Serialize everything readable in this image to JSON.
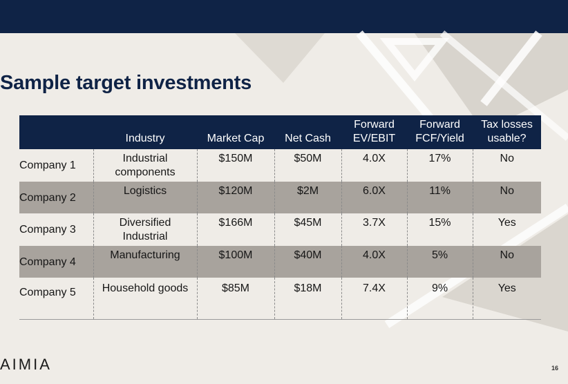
{
  "slide": {
    "title": "Sample target investments",
    "logo_text": "AIMIA",
    "page_number": "16"
  },
  "table": {
    "headers": [
      "",
      "Industry",
      "Market Cap",
      "Net Cash",
      "Forward\nEV/EBIT",
      "Forward\nFCF/Yield",
      "Tax losses\nusable?"
    ],
    "rows": [
      {
        "company": "Company 1",
        "industry": "Industrial\ncomponents",
        "market_cap": "$150M",
        "net_cash": "$50M",
        "ev_ebit": "4.0X",
        "fcf_yield": "17%",
        "tax_losses": "No"
      },
      {
        "company": "Company 2",
        "industry": "Logistics",
        "market_cap": "$120M",
        "net_cash": "$2M",
        "ev_ebit": "6.0X",
        "fcf_yield": "11%",
        "tax_losses": "No"
      },
      {
        "company": "Company 3",
        "industry": "Diversified\nIndustrial",
        "market_cap": "$166M",
        "net_cash": "$45M",
        "ev_ebit": "3.7X",
        "fcf_yield": "15%",
        "tax_losses": "Yes"
      },
      {
        "company": "Company 4",
        "industry": "Manufacturing",
        "market_cap": "$100M",
        "net_cash": "$40M",
        "ev_ebit": "4.0X",
        "fcf_yield": "5%",
        "tax_losses": "No"
      },
      {
        "company": "Company 5",
        "industry": "Household goods",
        "market_cap": "$85M",
        "net_cash": "$18M",
        "ev_ebit": "7.4X",
        "fcf_yield": "9%",
        "tax_losses": "Yes"
      }
    ]
  },
  "colors": {
    "navy": "#0f2346",
    "background": "#efece7",
    "row_shade": "#a8a39d"
  }
}
